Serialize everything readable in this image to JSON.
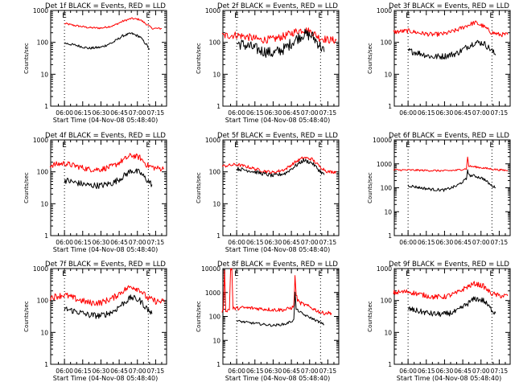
{
  "chart_data": [
    {
      "type": "line",
      "title": "Det 1f BLACK = Events, RED = LLD",
      "xlabel": "Start Time (04-Nov-08 05:48:40)",
      "ylabel": "Counts/sec",
      "log_y": true,
      "ylim": [
        1,
        1000
      ],
      "y_ticks": [
        "1",
        "10",
        "100",
        "1000"
      ],
      "x_ticks": [
        "06:00",
        "06:15",
        "06:30",
        "06:45",
        "07:00",
        "07:15"
      ],
      "xlim": [
        "05:48:40",
        "07:24"
      ],
      "markers_x": [
        "06:00",
        "07:09"
      ],
      "corner_labels": [
        "E",
        "E"
      ],
      "series": [
        {
          "name": "LLD",
          "color": "#ff0000",
          "x": [
            "06:00",
            "06:10",
            "06:20",
            "06:30",
            "06:40",
            "06:48",
            "06:55",
            "07:02",
            "07:08",
            "07:12",
            "07:20"
          ],
          "values": [
            390,
            330,
            290,
            280,
            330,
            460,
            560,
            520,
            360,
            275,
            270
          ],
          "noise": 0.03
        },
        {
          "name": "Events",
          "color": "#000000",
          "x": [
            "06:00",
            "06:10",
            "06:20",
            "06:30",
            "06:40",
            "06:48",
            "06:55",
            "07:02",
            "07:08",
            "07:10"
          ],
          "values": [
            95,
            80,
            65,
            70,
            100,
            160,
            190,
            150,
            80,
            60
          ],
          "noise": 0.04
        }
      ]
    },
    {
      "type": "line",
      "title": "Det 2f BLACK = Events, RED = LLD",
      "xlabel": "Start Time (04-Nov-08 05:48:40)",
      "ylabel": "Counts/sec",
      "log_y": true,
      "ylim": [
        1,
        1000
      ],
      "y_ticks": [
        "1",
        "10",
        "100",
        "1000"
      ],
      "x_ticks": [
        "06:00",
        "06:15",
        "06:30",
        "06:45",
        "07:00",
        "07:15"
      ],
      "xlim": [
        "05:48:40",
        "07:24"
      ],
      "markers_x": [
        "06:00",
        "07:09"
      ],
      "corner_labels": [
        "E",
        "E"
      ],
      "series": [
        {
          "name": "LLD",
          "color": "#ff0000",
          "x": [
            "05:48",
            "06:00",
            "06:10",
            "06:20",
            "06:30",
            "06:40",
            "06:48",
            "06:55",
            "07:02",
            "07:08",
            "07:15",
            "07:22"
          ],
          "values": [
            160,
            170,
            145,
            120,
            125,
            160,
            215,
            250,
            210,
            140,
            120,
            115
          ],
          "noise": 0.12
        },
        {
          "name": "Events",
          "color": "#000000",
          "x": [
            "06:00",
            "06:10",
            "06:20",
            "06:30",
            "06:40",
            "06:48",
            "06:55",
            "07:02",
            "07:08",
            "07:12"
          ],
          "values": [
            95,
            75,
            55,
            45,
            65,
            120,
            180,
            160,
            85,
            50
          ],
          "noise": 0.18
        }
      ]
    },
    {
      "type": "line",
      "title": "Det 3f BLACK = Events, RED = LLD",
      "xlabel": "",
      "ylabel": "Counts/sec",
      "log_y": true,
      "ylim": [
        1,
        1000
      ],
      "y_ticks": [
        "1",
        "10",
        "100",
        "1000"
      ],
      "x_ticks": [
        "06:00",
        "06:15",
        "06:30",
        "06:45",
        "07:00",
        "07:15"
      ],
      "xlim": [
        "05:48:40",
        "07:24"
      ],
      "markers_x": [
        "06:00",
        "07:09"
      ],
      "corner_labels": [
        "E",
        "E"
      ],
      "series": [
        {
          "name": "LLD",
          "color": "#ff0000",
          "x": [
            "05:48",
            "06:00",
            "06:10",
            "06:20",
            "06:30",
            "06:40",
            "06:48",
            "06:55",
            "07:02",
            "07:08",
            "07:15",
            "07:22"
          ],
          "values": [
            210,
            230,
            195,
            175,
            185,
            240,
            330,
            420,
            320,
            210,
            175,
            175
          ],
          "noise": 0.07
        },
        {
          "name": "Events",
          "color": "#000000",
          "x": [
            "06:00",
            "06:10",
            "06:20",
            "06:30",
            "06:40",
            "06:48",
            "06:55",
            "07:02",
            "07:08",
            "07:12"
          ],
          "values": [
            55,
            45,
            35,
            37,
            45,
            70,
            100,
            95,
            60,
            40
          ],
          "noise": 0.1
        }
      ]
    },
    {
      "type": "line",
      "title": "Det 4f BLACK = Events, RED = LLD",
      "xlabel": "Start Time (04-Nov-08 05:48:40)",
      "ylabel": "Counts/sec",
      "log_y": true,
      "ylim": [
        1,
        1000
      ],
      "y_ticks": [
        "1",
        "10",
        "100",
        "1000"
      ],
      "x_ticks": [
        "06:00",
        "06:15",
        "06:30",
        "06:45",
        "07:00",
        "07:15"
      ],
      "xlim": [
        "05:48:40",
        "07:24"
      ],
      "markers_x": [
        "06:00",
        "07:09"
      ],
      "corner_labels": [
        "E",
        "E"
      ],
      "series": [
        {
          "name": "LLD",
          "color": "#ff0000",
          "x": [
            "05:48",
            "06:00",
            "06:10",
            "06:20",
            "06:30",
            "06:40",
            "06:48",
            "06:55",
            "07:02",
            "07:08",
            "07:15",
            "07:22"
          ],
          "values": [
            160,
            185,
            150,
            120,
            120,
            150,
            230,
            330,
            280,
            160,
            130,
            125
          ],
          "noise": 0.09
        },
        {
          "name": "Events",
          "color": "#000000",
          "x": [
            "06:00",
            "06:10",
            "06:20",
            "06:30",
            "06:40",
            "06:48",
            "06:55",
            "07:02",
            "07:08",
            "07:12"
          ],
          "values": [
            55,
            45,
            38,
            37,
            45,
            70,
            110,
            95,
            55,
            40
          ],
          "noise": 0.1
        }
      ]
    },
    {
      "type": "line",
      "title": "Det 5f BLACK = Events, RED = LLD",
      "xlabel": "Start Time (04-Nov-08 05:48:40)",
      "ylabel": "Counts/sec",
      "log_y": true,
      "ylim": [
        1,
        1000
      ],
      "y_ticks": [
        "1",
        "10",
        "100",
        "1000"
      ],
      "x_ticks": [
        "06:00",
        "06:15",
        "06:30",
        "06:45",
        "07:00",
        "07:15"
      ],
      "xlim": [
        "05:48:40",
        "07:24"
      ],
      "markers_x": [
        "06:00",
        "07:09"
      ],
      "corner_labels": [
        "E",
        "E"
      ],
      "series": [
        {
          "name": "LLD",
          "color": "#ff0000",
          "x": [
            "05:48",
            "06:00",
            "06:10",
            "06:20",
            "06:30",
            "06:40",
            "06:48",
            "06:55",
            "07:02",
            "07:08",
            "07:15",
            "07:22"
          ],
          "values": [
            150,
            170,
            140,
            110,
            95,
            120,
            200,
            280,
            250,
            150,
            100,
            100
          ],
          "noise": 0.05
        },
        {
          "name": "Events",
          "color": "#000000",
          "x": [
            "06:00",
            "06:10",
            "06:20",
            "06:30",
            "06:40",
            "06:48",
            "06:55",
            "07:02",
            "07:08",
            "07:12"
          ],
          "values": [
            125,
            110,
            90,
            75,
            90,
            150,
            230,
            190,
            110,
            80
          ],
          "noise": 0.06
        }
      ]
    },
    {
      "type": "line",
      "title": "Det 6f BLACK = Events, RED = LLD",
      "xlabel": "",
      "ylabel": "Counts/sec",
      "log_y": true,
      "ylim": [
        1,
        10000
      ],
      "y_ticks": [
        "1",
        "10",
        "100",
        "1000",
        "10000"
      ],
      "x_ticks": [
        "06:00",
        "06:15",
        "06:30",
        "06:45",
        "07:00",
        "07:15"
      ],
      "xlim": [
        "05:48:40",
        "07:24"
      ],
      "markers_x": [
        "06:00",
        "07:09"
      ],
      "corner_labels": [
        "E",
        "E"
      ],
      "series": [
        {
          "name": "LLD",
          "color": "#ff0000",
          "x": [
            "05:48",
            "06:00",
            "06:15",
            "06:30",
            "06:40",
            "06:48",
            "06:49",
            "06:50",
            "06:55",
            "07:05",
            "07:15",
            "07:22"
          ],
          "values": [
            560,
            550,
            530,
            510,
            540,
            630,
            1900,
            800,
            750,
            640,
            560,
            530
          ],
          "noise": 0.04
        },
        {
          "name": "Events",
          "color": "#000000",
          "x": [
            "06:00",
            "06:10",
            "06:20",
            "06:30",
            "06:40",
            "06:48",
            "06:49",
            "06:50",
            "06:55",
            "07:02",
            "07:08",
            "07:12"
          ],
          "values": [
            125,
            100,
            85,
            80,
            120,
            230,
            600,
            330,
            310,
            240,
            130,
            100
          ],
          "noise": 0.06
        }
      ]
    },
    {
      "type": "line",
      "title": "Det 7f BLACK = Events, RED = LLD",
      "xlabel": "Start Time (04-Nov-08 05:48:40)",
      "ylabel": "Counts/sec",
      "log_y": true,
      "ylim": [
        1,
        1000
      ],
      "y_ticks": [
        "1",
        "10",
        "100",
        "1000"
      ],
      "x_ticks": [
        "06:00",
        "06:15",
        "06:30",
        "06:45",
        "07:00",
        "07:15"
      ],
      "xlim": [
        "05:48:40",
        "07:24"
      ],
      "markers_x": [
        "06:00",
        "07:09"
      ],
      "corner_labels": [
        "E",
        "E"
      ],
      "series": [
        {
          "name": "LLD",
          "color": "#ff0000",
          "x": [
            "05:48",
            "06:00",
            "06:10",
            "06:20",
            "06:30",
            "06:40",
            "06:48",
            "06:55",
            "07:02",
            "07:08",
            "07:15",
            "07:22"
          ],
          "values": [
            125,
            150,
            110,
            85,
            85,
            120,
            200,
            280,
            220,
            120,
            95,
            90
          ],
          "noise": 0.1
        },
        {
          "name": "Events",
          "color": "#000000",
          "x": [
            "06:00",
            "06:10",
            "06:20",
            "06:30",
            "06:40",
            "06:48",
            "06:55",
            "07:02",
            "07:08",
            "07:12"
          ],
          "values": [
            55,
            45,
            35,
            33,
            45,
            80,
            125,
            100,
            55,
            38
          ],
          "noise": 0.1
        }
      ]
    },
    {
      "type": "line",
      "title": "Det 8f BLACK = Events, RED = LLD",
      "xlabel": "Start Time (04-Nov-08 05:48:40)",
      "ylabel": "Counts/sec",
      "log_y": true,
      "ylim": [
        1,
        10000
      ],
      "y_ticks": [
        "1",
        "10",
        "100",
        "1000",
        "10000"
      ],
      "x_ticks": [
        "06:00",
        "06:15",
        "06:30",
        "06:45",
        "07:00",
        "07:15"
      ],
      "xlim": [
        "05:48:40",
        "07:24"
      ],
      "markers_x": [
        "06:00",
        "07:09"
      ],
      "corner_labels": [
        "E",
        "E"
      ],
      "series": [
        {
          "name": "LLD",
          "color": "#ff0000",
          "x": [
            "05:48",
            "05:49",
            "05:50",
            "05:51",
            "05:54",
            "05:55",
            "05:56",
            "05:57",
            "06:05",
            "06:15",
            "06:30",
            "06:40",
            "06:47",
            "06:48",
            "06:49",
            "06:50",
            "06:52",
            "07:00",
            "07:10",
            "07:18"
          ],
          "values": [
            170,
            160,
            10000,
            180,
            190,
            10000,
            10000,
            210,
            230,
            220,
            190,
            190,
            250,
            4500,
            800,
            500,
            370,
            250,
            140,
            140
          ],
          "noise": 0.08
        },
        {
          "name": "Events",
          "color": "#000000",
          "x": [
            "06:00",
            "06:10",
            "06:20",
            "06:30",
            "06:40",
            "06:47",
            "06:48",
            "06:49",
            "06:55",
            "07:05",
            "07:12"
          ],
          "values": [
            65,
            55,
            48,
            42,
            48,
            70,
            950,
            200,
            120,
            70,
            45
          ],
          "noise": 0.05
        }
      ]
    },
    {
      "type": "line",
      "title": "Det 9f BLACK = Events, RED = LLD",
      "xlabel": "Start Time (04-Nov-08 05:48:40)",
      "ylabel": "Counts/sec",
      "log_y": true,
      "ylim": [
        1,
        1000
      ],
      "y_ticks": [
        "1",
        "10",
        "100",
        "1000"
      ],
      "x_ticks": [
        "06:00",
        "06:15",
        "06:30",
        "06:45",
        "07:00",
        "07:15"
      ],
      "xlim": [
        "05:48:40",
        "07:24"
      ],
      "markers_x": [
        "06:00",
        "07:09"
      ],
      "corner_labels": [
        "E",
        "E"
      ],
      "series": [
        {
          "name": "LLD",
          "color": "#ff0000",
          "x": [
            "05:48",
            "06:00",
            "06:10",
            "06:20",
            "06:30",
            "06:40",
            "06:48",
            "06:55",
            "07:02",
            "07:08",
            "07:15",
            "07:22"
          ],
          "values": [
            175,
            190,
            155,
            130,
            130,
            170,
            260,
            340,
            280,
            170,
            140,
            140
          ],
          "noise": 0.08
        },
        {
          "name": "Events",
          "color": "#000000",
          "x": [
            "06:00",
            "06:10",
            "06:20",
            "06:30",
            "06:40",
            "06:48",
            "06:55",
            "07:02",
            "07:08",
            "07:12"
          ],
          "values": [
            55,
            45,
            38,
            37,
            45,
            75,
            115,
            100,
            55,
            40
          ],
          "noise": 0.09
        }
      ]
    }
  ]
}
